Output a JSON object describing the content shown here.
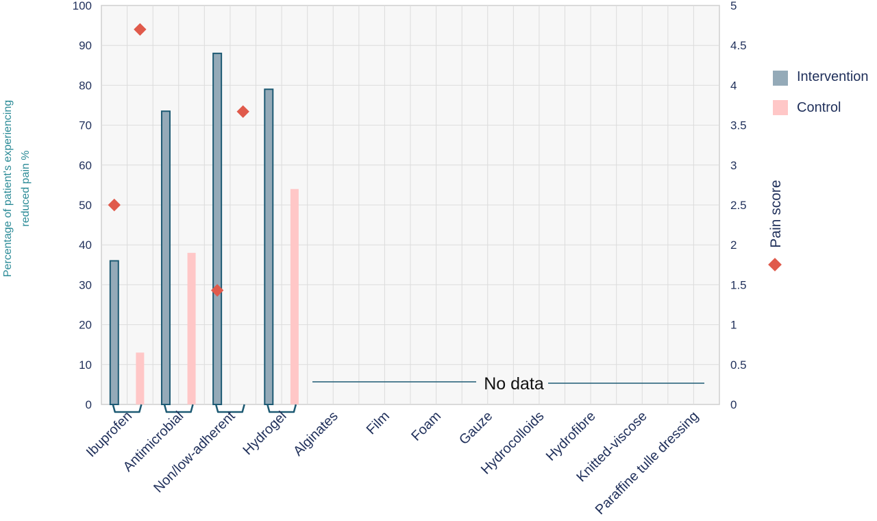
{
  "chart_data": {
    "type": "bar",
    "ylabel_left": [
      "Percentage of patient's experiencing",
      "reduced pain %"
    ],
    "ylabel_right": "Pain score",
    "ylim_left": [
      0,
      100
    ],
    "ylim_right": [
      0,
      5
    ],
    "yticks_left": [
      "0",
      "10",
      "20",
      "30",
      "40",
      "50",
      "60",
      "70",
      "80",
      "90",
      "100"
    ],
    "yticks_right": [
      "0",
      "0.5",
      "1",
      "1.5",
      "2",
      "2.5",
      "3",
      "3.5",
      "4",
      "4.5",
      "5"
    ],
    "categories": [
      "Ibuprofen",
      "Antimicrobial",
      "Non/low-adherent",
      "Hydrogel",
      "Alginates",
      "Film",
      "Foam",
      "Gauze",
      "Hydrocolloids",
      "Hydrofibre",
      "Knitted-viscose",
      "Paraffine tulle dressing"
    ],
    "series": [
      {
        "name": "Intervention",
        "color": "#94aab8",
        "edge": "#1d5a73",
        "values": [
          36,
          73.5,
          88,
          79,
          null,
          null,
          null,
          null,
          null,
          null,
          null,
          null
        ]
      },
      {
        "name": "Control",
        "color": "#ffc7c7",
        "values": [
          13,
          38,
          null,
          54,
          null,
          null,
          null,
          null,
          null,
          null,
          null,
          null
        ]
      }
    ],
    "pain_score": {
      "color": "#e05a4b",
      "intervention": [
        2.5,
        null,
        1.43,
        null,
        null,
        null,
        null,
        null,
        null,
        null,
        null,
        null
      ],
      "control": [
        4.7,
        null,
        3.67,
        null,
        null,
        null,
        null,
        null,
        null,
        null,
        null,
        null
      ]
    },
    "annotation": "No data",
    "grid": true,
    "legend": "right"
  }
}
